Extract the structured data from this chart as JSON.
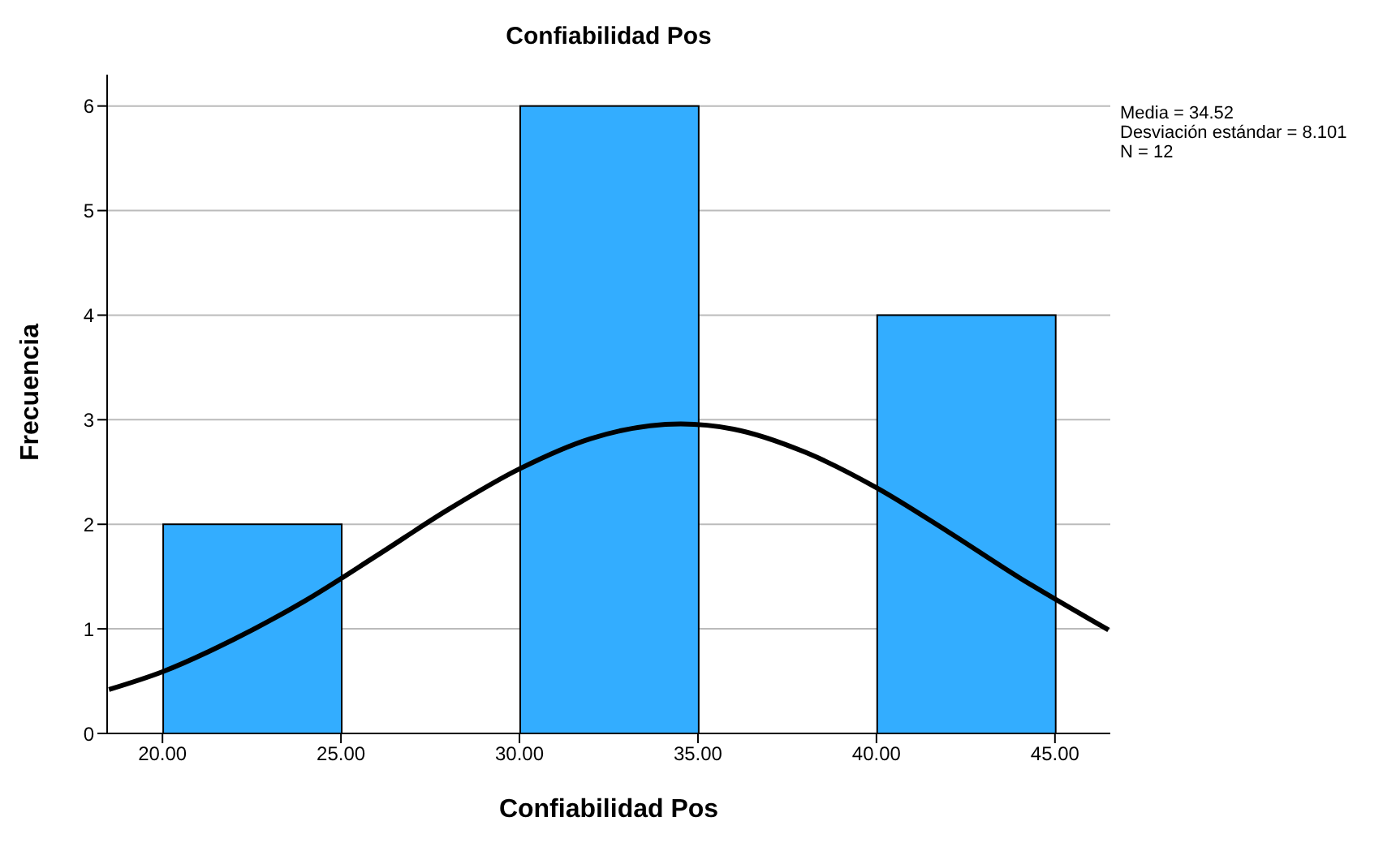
{
  "chart_data": {
    "type": "histogram",
    "title": "Confiabilidad Pos",
    "xlabel": "Confiabilidad Pos",
    "ylabel": "Frecuencia",
    "bins": [
      20,
      25,
      30,
      35,
      40,
      45
    ],
    "values": [
      2,
      0,
      6,
      0,
      4
    ],
    "color": "#33adff",
    "series": [
      {
        "type": "line",
        "color": "#000000",
        "x": [
          18.5,
          20,
          22,
          24,
          26,
          28,
          30,
          32,
          34.52,
          36,
          38,
          40,
          42,
          44,
          46.5
        ],
        "values": [
          0.42,
          0.59,
          0.9,
          1.27,
          1.7,
          2.14,
          2.53,
          2.82,
          2.96,
          2.91,
          2.69,
          2.35,
          1.93,
          1.49,
          0.99
        ]
      }
    ],
    "xlim": [
      18.45,
      46.55
    ],
    "xticks": [
      {
        "value": 20,
        "label": "20.00"
      },
      {
        "value": 25,
        "label": "25.00"
      },
      {
        "value": 30,
        "label": "30.00"
      },
      {
        "value": 35,
        "label": "35.00"
      },
      {
        "value": 40,
        "label": "40.00"
      },
      {
        "value": 45,
        "label": "45.00"
      }
    ],
    "ylim": [
      0,
      6.3
    ],
    "yticks": [
      0,
      1,
      2,
      3,
      4,
      5,
      6
    ],
    "grid": "y",
    "marker": "none",
    "annotations": [
      "Media = 34.52",
      "Desviación estándar = 8.101",
      "N = 12"
    ]
  }
}
